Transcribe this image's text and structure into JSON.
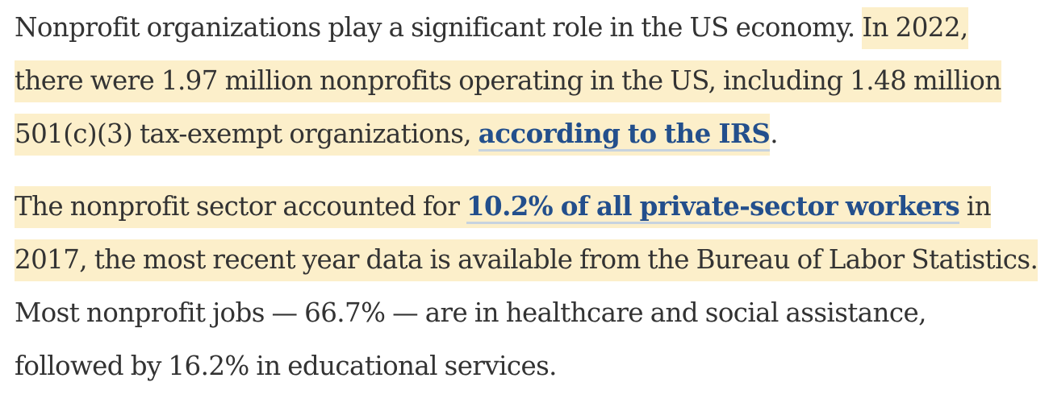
{
  "paragraphs": [
    {
      "intro": "Nonprofit organizations play a significant role in the US economy. ",
      "highlight_text": "In 2022, there were 1.97 million nonprofits operating in the US, including 1.48 million 501(c)(3) tax-exempt organizations, ",
      "link_text": "according to the IRS",
      "highlight_end": "",
      "plain_end": "."
    },
    {
      "highlight_start": "The nonprofit sector accounted for ",
      "link_text": "10.2% of all private-sector workers",
      "highlight_text": " in 2017, the most recent year data is available from the Bureau of Labor Statistics.",
      "plain_end": " Most nonprofit jobs — 66.7% — are in healthcare and social assistance, followed by 16.2% in educational services."
    }
  ],
  "colors": {
    "highlight": "#fcefca",
    "link": "#234f8c",
    "text": "#333333"
  }
}
